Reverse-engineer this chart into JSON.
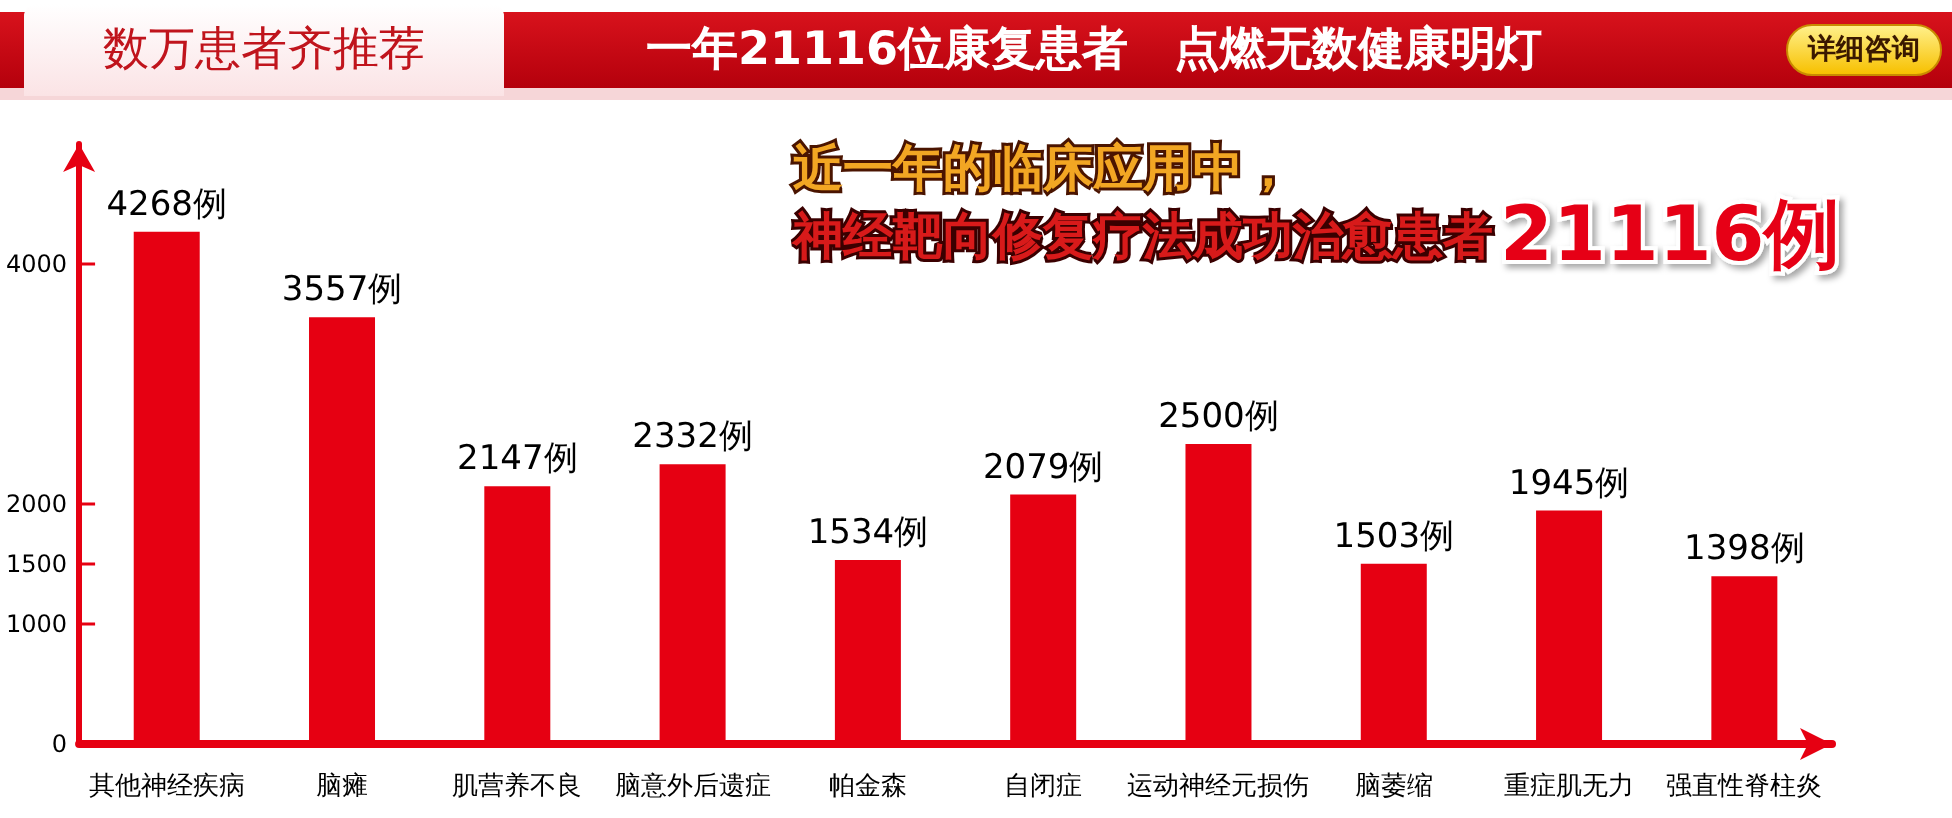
{
  "chart_data": {
    "type": "bar",
    "title": "一年21116位康复患者　点燃无数健康明灯",
    "subtitle": "数万患者齐推荐",
    "categories": [
      "其他神经疾病",
      "脑瘫",
      "肌营养不良",
      "脑意外后遗症",
      "帕金森",
      "自闭症",
      "运动神经元损伤",
      "脑萎缩",
      "重症肌无力",
      "强直性脊柱炎"
    ],
    "values": [
      4268,
      3557,
      2147,
      2332,
      1534,
      2079,
      2500,
      1503,
      1945,
      1398
    ],
    "value_labels": [
      "4268例",
      "3557例",
      "2147例",
      "2332例",
      "1534例",
      "2079例",
      "2500例",
      "1503例",
      "1945例",
      "1398例"
    ],
    "color": "#e60012",
    "ylim": [
      0,
      5000
    ],
    "yticks": [
      0,
      1000,
      1500,
      2000,
      4000
    ],
    "grid": false,
    "annotations": [
      "近一年的临床应用中，",
      "神经靶向修复疗法成功治愈患者",
      "21116例",
      "详细咨询"
    ]
  }
}
